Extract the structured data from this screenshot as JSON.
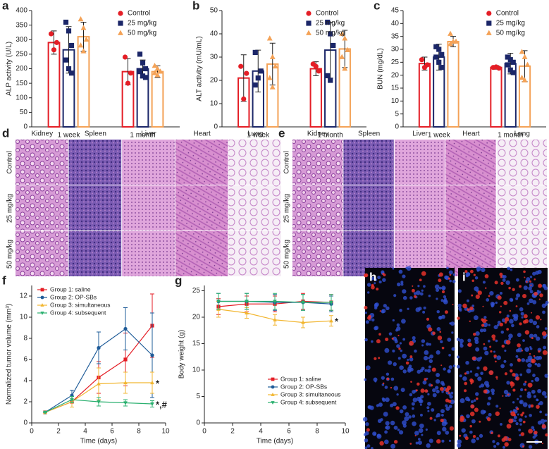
{
  "chart_data": [
    {
      "panel": "a",
      "type": "bar",
      "ylabel": "ALP activity (U/L)",
      "categories": [
        "1 week",
        "1 month"
      ],
      "ylim": [
        0,
        400
      ],
      "yticks": [
        0,
        50,
        100,
        150,
        200,
        250,
        300,
        350,
        400
      ],
      "legend": "upper right",
      "series": [
        {
          "name": "Control",
          "color": "#e41e26",
          "marker": "circle",
          "values": [
            290,
            190
          ],
          "errors": [
            40,
            45
          ],
          "points": [
            [
              320,
              265,
              290
            ],
            [
              240,
              150,
              185
            ]
          ]
        },
        {
          "name": "25 mg/kg",
          "color": "#1b2668",
          "marker": "square",
          "values": [
            265,
            200
          ],
          "errors": [
            80,
            30
          ],
          "points": [
            [
              360,
              330,
              280,
              230,
              200,
              185
            ],
            [
              250,
              220,
              200,
              190,
              175,
              170
            ]
          ]
        },
        {
          "name": "50 mg/kg",
          "color": "#f4a257",
          "marker": "triangle",
          "values": [
            310,
            190
          ],
          "errors": [
            50,
            20
          ],
          "points": [
            [
              370,
              340,
              300,
              280,
              260
            ],
            [
              210,
              200,
              190,
              185,
              178
            ]
          ]
        }
      ]
    },
    {
      "panel": "b",
      "type": "bar",
      "ylabel": "ALT activity (mU/mL)",
      "categories": [
        "1 week",
        "1 month"
      ],
      "ylim": [
        0,
        50
      ],
      "yticks": [
        0,
        10,
        20,
        30,
        40,
        50
      ],
      "legend": "upper right",
      "series": [
        {
          "name": "Control",
          "color": "#e41e26",
          "marker": "circle",
          "values": [
            21,
            25
          ],
          "errors": [
            10,
            3
          ],
          "points": [
            [
              26,
              12,
              23
            ],
            [
              27,
              26,
              24
            ]
          ]
        },
        {
          "name": "25 mg/kg",
          "color": "#1b2668",
          "marker": "square",
          "values": [
            24,
            33
          ],
          "errors": [
            9,
            12
          ],
          "points": [
            [
              32,
              21,
              24,
              18
            ],
            [
              45,
              40,
              35,
              22,
              20
            ]
          ]
        },
        {
          "name": "50 mg/kg",
          "color": "#f4a257",
          "marker": "triangle",
          "values": [
            27,
            33.5
          ],
          "errors": [
            9,
            8
          ],
          "points": [
            [
              38,
              30,
              26,
              21,
              17
            ],
            [
              40,
              38,
              33,
              30,
              25
            ]
          ]
        }
      ]
    },
    {
      "panel": "c",
      "type": "bar",
      "ylabel": "BUN (mg/dL)",
      "categories": [
        "1 week",
        "1 month"
      ],
      "ylim": [
        0,
        45
      ],
      "yticks": [
        0,
        5,
        10,
        15,
        20,
        25,
        30,
        35,
        40,
        45
      ],
      "legend": "upper right",
      "series": [
        {
          "name": "Control",
          "color": "#e41e26",
          "marker": "circle",
          "values": [
            24.5,
            23
          ],
          "errors": [
            2.5,
            0.7
          ],
          "points": [
            [
              26,
              23,
              24
            ],
            [
              23,
              23.2,
              22.7
            ]
          ]
        },
        {
          "name": "25 mg/kg",
          "color": "#1b2668",
          "marker": "square",
          "values": [
            27,
            24.5
          ],
          "errors": [
            5,
            4
          ],
          "points": [
            [
              31,
              30,
              28,
              27,
              25,
              23
            ],
            [
              27,
              26,
              25,
              24,
              22,
              21
            ]
          ]
        },
        {
          "name": "50 mg/kg",
          "color": "#f4a257",
          "marker": "triangle",
          "values": [
            33,
            23.5
          ],
          "errors": [
            2,
            6
          ],
          "points": [
            [
              36,
              33,
              33,
              32
            ],
            [
              29,
              27,
              24,
              19,
              18
            ]
          ]
        }
      ]
    },
    {
      "panel": "f",
      "type": "line",
      "xlabel": "Time (days)",
      "ylabel": "Normalized tumor volume (mm³)",
      "x": [
        1,
        3,
        5,
        7,
        9
      ],
      "xlim": [
        0,
        10
      ],
      "xticks": [
        0,
        2,
        4,
        6,
        8,
        10
      ],
      "ylim": [
        0,
        13
      ],
      "yticks": [
        0,
        2,
        4,
        6,
        8,
        10,
        12
      ],
      "legend": "upper left",
      "series": [
        {
          "name": "Group 1: saline",
          "color": "#e41e26",
          "marker": "square",
          "values": [
            1,
            2,
            4.3,
            6,
            9.2
          ],
          "errors": [
            0,
            0.5,
            1.5,
            2.5,
            3
          ]
        },
        {
          "name": "Group 2: OP-SBs",
          "color": "#1f5c99",
          "marker": "circle",
          "values": [
            1,
            2.6,
            7.1,
            8.9,
            6.4
          ],
          "errors": [
            0,
            0.5,
            1.5,
            2,
            4
          ]
        },
        {
          "name": "Group 3: simultaneous",
          "color": "#f2b630",
          "marker": "triangle",
          "values": [
            1,
            2,
            3.7,
            3.8,
            3.8
          ],
          "errors": [
            0,
            0.5,
            1.5,
            1,
            1
          ]
        },
        {
          "name": "Group 4: subsequent",
          "color": "#2ab06f",
          "marker": "triangle-down",
          "values": [
            1,
            2.2,
            2,
            1.9,
            1.8
          ],
          "errors": [
            0,
            0.3,
            0.4,
            0.3,
            0.3
          ]
        }
      ],
      "annotations": [
        {
          "text": "*",
          "series": 2
        },
        {
          "text": "*,#",
          "series": 3
        }
      ]
    },
    {
      "panel": "g",
      "type": "line",
      "xlabel": "Time (days)",
      "ylabel": "Body weight (g)",
      "x": [
        1,
        3,
        5,
        7,
        9
      ],
      "xlim": [
        0,
        10
      ],
      "xticks": [
        0,
        2,
        4,
        6,
        8,
        10
      ],
      "ylim": [
        0,
        26
      ],
      "yticks": [
        0,
        5,
        10,
        15,
        20,
        25
      ],
      "legend": "lower right",
      "series": [
        {
          "name": "Group 1: saline",
          "color": "#e41e26",
          "marker": "square",
          "values": [
            22,
            22.5,
            22.5,
            23,
            22.8
          ],
          "errors": [
            1.5,
            1.5,
            1.5,
            1.5,
            1.5
          ]
        },
        {
          "name": "Group 2: OP-SBs",
          "color": "#1f5c99",
          "marker": "circle",
          "values": [
            23,
            23,
            22.8,
            22.8,
            22.5
          ],
          "errors": [
            1.5,
            1.5,
            1.5,
            1.5,
            1.5
          ]
        },
        {
          "name": "Group 3: simultaneous",
          "color": "#f2b630",
          "marker": "triangle",
          "values": [
            21.5,
            20.8,
            19.5,
            19,
            19.3
          ],
          "errors": [
            1.5,
            1,
            1,
            1,
            1
          ]
        },
        {
          "name": "Group 4: subsequent",
          "color": "#2ab06f",
          "marker": "triangle-down",
          "values": [
            23,
            23,
            23,
            22.8,
            22.8
          ],
          "errors": [
            1.5,
            1.5,
            1.5,
            1.5,
            1.5
          ]
        }
      ],
      "annotations": [
        {
          "text": "*",
          "series": 2
        }
      ]
    }
  ],
  "images": [
    {
      "panel": "d",
      "columns": [
        "Kidney",
        "Spleen",
        "Liver",
        "Heart",
        "Lung"
      ],
      "rows": [
        "Control",
        "25 mg/kg",
        "50 mg/kg"
      ]
    },
    {
      "panel": "e",
      "columns": [
        "Kidney",
        "Spleen",
        "Liver",
        "Heart",
        "Lung"
      ],
      "rows": [
        "Control",
        "25 mg/kg",
        "50 mg/kg"
      ]
    },
    {
      "panel": "h"
    },
    {
      "panel": "i"
    }
  ]
}
